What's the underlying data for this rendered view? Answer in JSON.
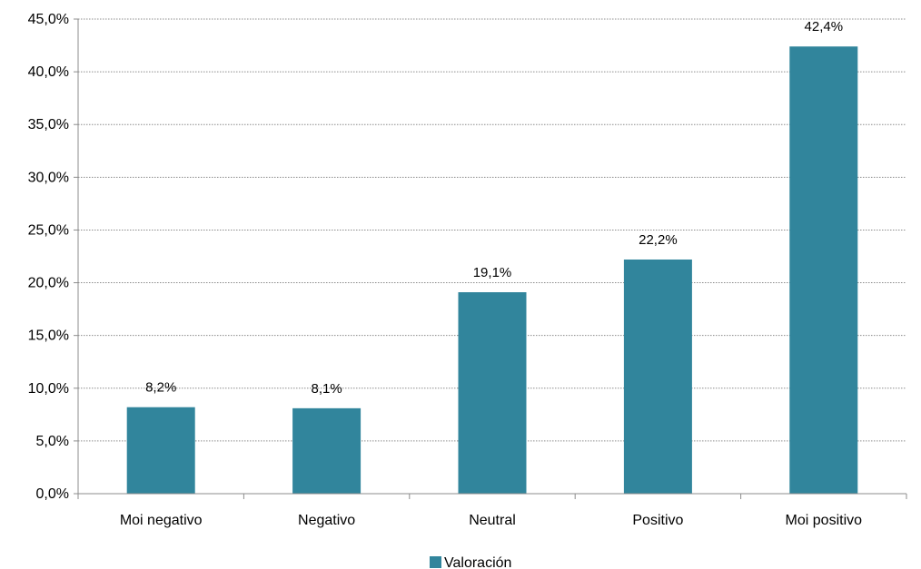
{
  "chart_data": {
    "type": "bar",
    "categories": [
      "Moi negativo",
      "Negativo",
      "Neutral",
      "Positivo",
      "Moi positivo"
    ],
    "series": [
      {
        "name": "Valoración",
        "values": [
          8.2,
          8.1,
          19.1,
          22.2,
          42.4
        ],
        "labels": [
          "8,2%",
          "8,1%",
          "19,1%",
          "22,2%",
          "42,4%"
        ],
        "color": "#31859c"
      }
    ],
    "ylim": [
      0,
      45
    ],
    "yticks": [
      0,
      5,
      10,
      15,
      20,
      25,
      30,
      35,
      40,
      45
    ],
    "ytick_labels": [
      "0,0%",
      "5,0%",
      "10,0%",
      "15,0%",
      "20,0%",
      "25,0%",
      "30,0%",
      "35,0%",
      "40,0%",
      "45,0%"
    ],
    "grid": true,
    "legend_position": "bottom",
    "title": "",
    "xlabel": "",
    "ylabel": ""
  }
}
